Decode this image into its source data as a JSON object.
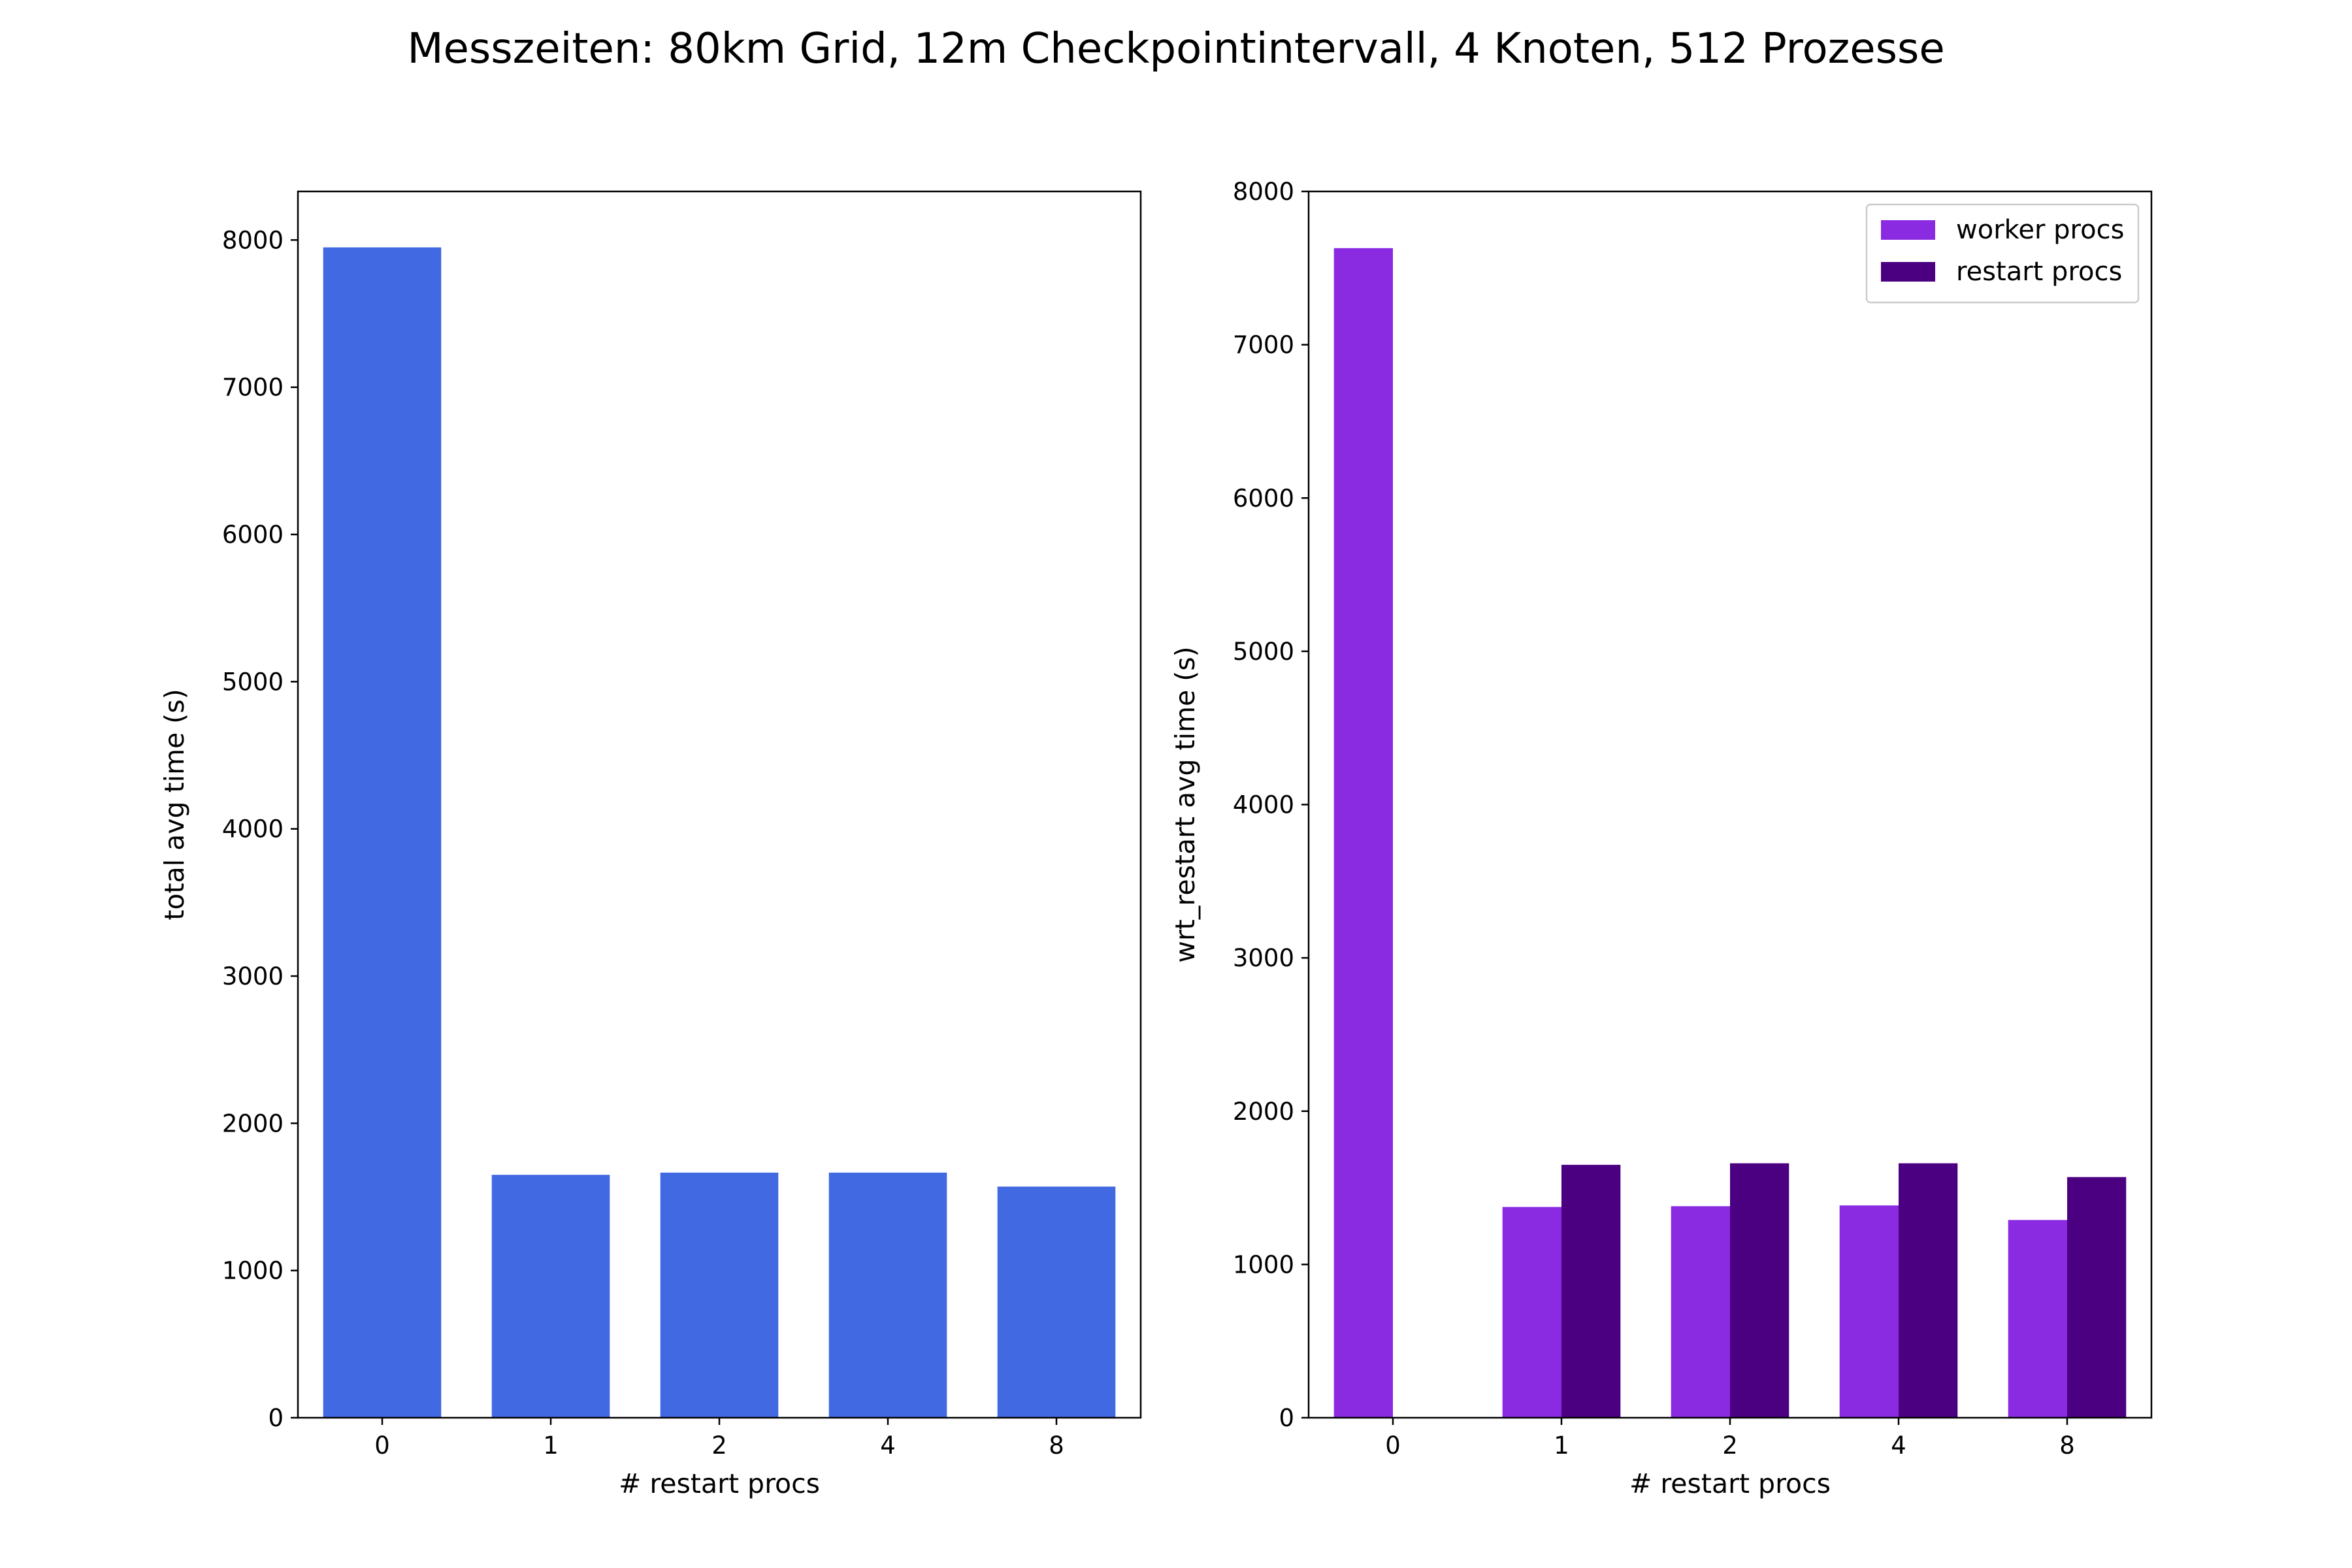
{
  "figure": {
    "suptitle": "Messzeiten: 80km Grid, 12m Checkpointintervall, 4 Knoten, 512 Prozesse"
  },
  "chart_data": [
    {
      "type": "bar",
      "title": "",
      "categories": [
        "0",
        "1",
        "2",
        "4",
        "8"
      ],
      "series": [
        {
          "values": [
            7950,
            1650,
            1665,
            1665,
            1570
          ],
          "color": "#4169e1"
        }
      ],
      "xlabel": "# restart procs",
      "ylabel": "total avg time (s)",
      "ylim": [
        0,
        8330
      ],
      "yticks": [
        0,
        1000,
        2000,
        3000,
        4000,
        5000,
        6000,
        7000,
        8000
      ],
      "grid": false,
      "legend": null
    },
    {
      "type": "bar",
      "title": "",
      "categories": [
        "0",
        "1",
        "2",
        "4",
        "8"
      ],
      "series": [
        {
          "name": "worker procs",
          "values": [
            7630,
            1375,
            1380,
            1385,
            1290
          ],
          "color": "#8a2be2"
        },
        {
          "name": "restart procs",
          "values": [
            0,
            1650,
            1660,
            1660,
            1570
          ],
          "color": "#4b0082"
        }
      ],
      "xlabel": "# restart procs",
      "ylabel": "wrt_restart avg time (s)",
      "ylim": [
        0,
        8000
      ],
      "yticks": [
        0,
        1000,
        2000,
        3000,
        4000,
        5000,
        6000,
        7000,
        8000
      ],
      "grid": false,
      "legend": "upper right"
    }
  ]
}
